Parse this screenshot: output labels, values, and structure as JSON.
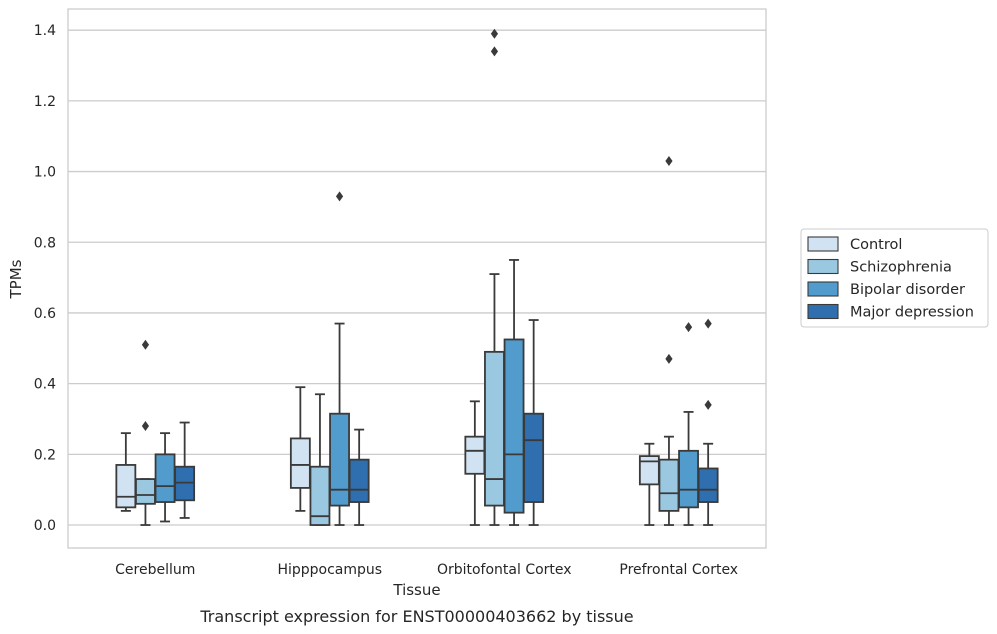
{
  "chart_data": {
    "type": "box",
    "title": "",
    "caption": "Transcript expression for ENST00000403662 by tissue",
    "xlabel": "Tissue",
    "ylabel": "TPMs",
    "ylim": [
      -0.065,
      1.46
    ],
    "yticks": [
      0.0,
      0.2,
      0.4,
      0.6,
      0.8,
      1.0,
      1.2,
      1.4
    ],
    "ytick_labels": [
      "0.0",
      "0.2",
      "0.4",
      "0.6",
      "0.8",
      "1.0",
      "1.2",
      "1.4"
    ],
    "grid": "horizontal",
    "legend_placement": "right",
    "categories": [
      "Cerebellum",
      "Hipppocampus",
      "Orbitofontal Cortex",
      "Prefrontal Cortex"
    ],
    "series": [
      {
        "name": "Control",
        "color": "#d1e2f2",
        "boxes": [
          {
            "whislo": 0.04,
            "q1": 0.05,
            "med": 0.08,
            "q3": 0.17,
            "whishi": 0.26,
            "fliers": []
          },
          {
            "whislo": 0.04,
            "q1": 0.105,
            "med": 0.17,
            "q3": 0.245,
            "whishi": 0.39,
            "fliers": []
          },
          {
            "whislo": 0.0,
            "q1": 0.145,
            "med": 0.21,
            "q3": 0.25,
            "whishi": 0.35,
            "fliers": []
          },
          {
            "whislo": 0.0,
            "q1": 0.115,
            "med": 0.18,
            "q3": 0.195,
            "whishi": 0.23,
            "fliers": []
          }
        ]
      },
      {
        "name": "Schizophrenia",
        "color": "#9ac8e0",
        "boxes": [
          {
            "whislo": 0.0,
            "q1": 0.06,
            "med": 0.085,
            "q3": 0.13,
            "whishi": 0.13,
            "fliers": [
              0.28,
              0.51
            ]
          },
          {
            "whislo": 0.0,
            "q1": 0.0,
            "med": 0.025,
            "q3": 0.165,
            "whishi": 0.37,
            "fliers": []
          },
          {
            "whislo": 0.0,
            "q1": 0.055,
            "med": 0.13,
            "q3": 0.49,
            "whishi": 0.71,
            "fliers": [
              1.34,
              1.39
            ]
          },
          {
            "whislo": 0.0,
            "q1": 0.04,
            "med": 0.09,
            "q3": 0.185,
            "whishi": 0.25,
            "fliers": [
              0.47,
              1.03
            ]
          }
        ]
      },
      {
        "name": "Bipolar disorder",
        "color": "#519ccc",
        "boxes": [
          {
            "whislo": 0.01,
            "q1": 0.065,
            "med": 0.11,
            "q3": 0.2,
            "whishi": 0.26,
            "fliers": []
          },
          {
            "whislo": 0.0,
            "q1": 0.055,
            "med": 0.1,
            "q3": 0.315,
            "whishi": 0.57,
            "fliers": [
              0.93
            ]
          },
          {
            "whislo": 0.0,
            "q1": 0.035,
            "med": 0.2,
            "q3": 0.525,
            "whishi": 0.75,
            "fliers": []
          },
          {
            "whislo": 0.0,
            "q1": 0.05,
            "med": 0.1,
            "q3": 0.21,
            "whishi": 0.32,
            "fliers": [
              0.56
            ]
          }
        ]
      },
      {
        "name": "Major depression",
        "color": "#2f6fb0",
        "boxes": [
          {
            "whislo": 0.02,
            "q1": 0.07,
            "med": 0.12,
            "q3": 0.165,
            "whishi": 0.29,
            "fliers": []
          },
          {
            "whislo": 0.0,
            "q1": 0.065,
            "med": 0.1,
            "q3": 0.185,
            "whishi": 0.27,
            "fliers": []
          },
          {
            "whislo": 0.0,
            "q1": 0.065,
            "med": 0.24,
            "q3": 0.315,
            "whishi": 0.58,
            "fliers": []
          },
          {
            "whislo": 0.0,
            "q1": 0.065,
            "med": 0.1,
            "q3": 0.16,
            "whishi": 0.23,
            "fliers": [
              0.34,
              0.57
            ]
          }
        ]
      }
    ]
  }
}
